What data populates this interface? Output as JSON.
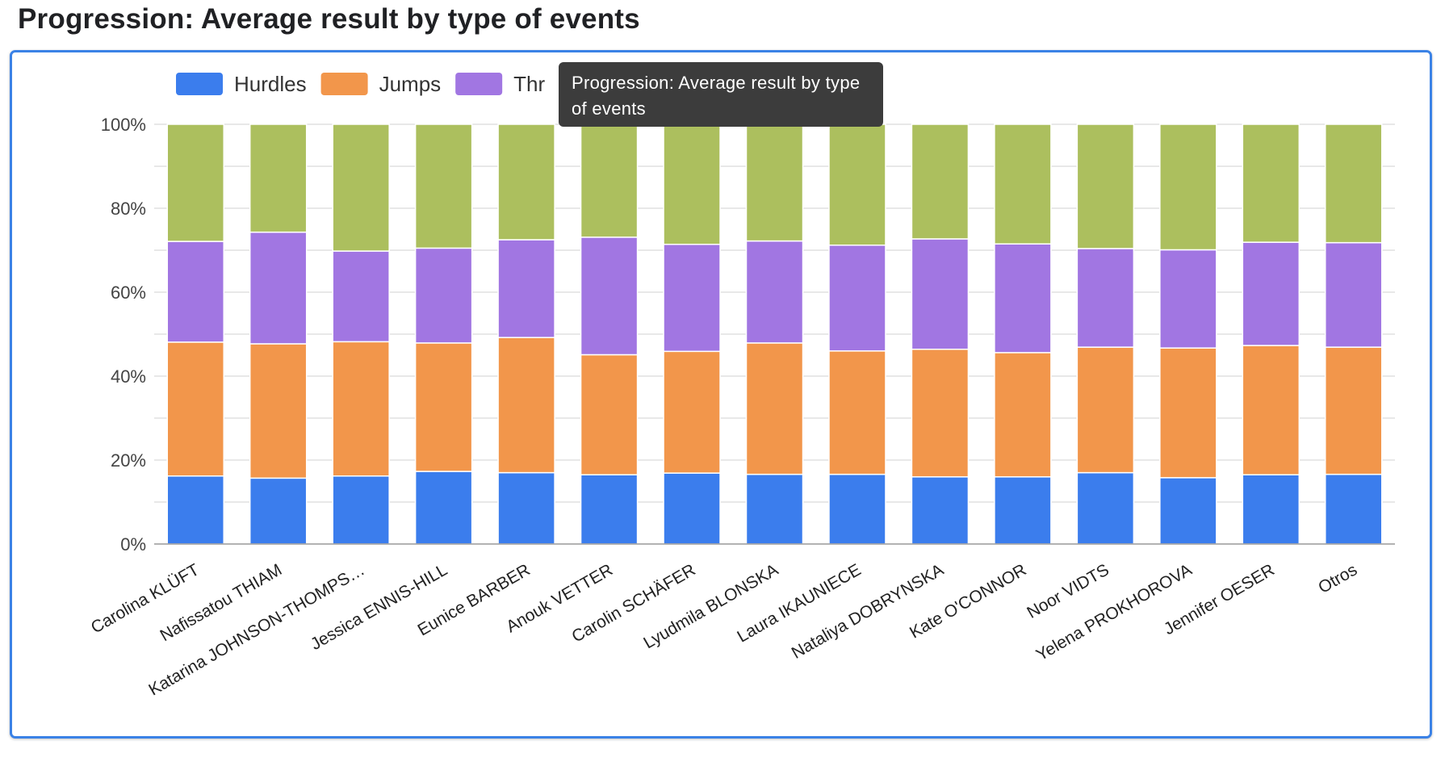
{
  "page": {
    "title": "Progression: Average result by type of events"
  },
  "tooltip": {
    "text": "Progression: Average result by type of events"
  },
  "colors": {
    "Hurdles": "#3b7ded",
    "Jumps": "#f2964b",
    "Throws": "#a176e2",
    "Runs": "#acbf5e",
    "grid": "#d9d9d9",
    "axis": "#999999",
    "tooltip_bg": "#3c3c3c",
    "card_border": "#3b82e6"
  },
  "chart_data": {
    "type": "bar",
    "stacked": "percent",
    "title": "Progression: Average result by type of events",
    "categories": [
      "Carolina KLÜFT",
      "Nafissatou THIAM",
      "Katarina JOHNSON-THOMPS…",
      "Jessica ENNIS-HILL",
      "Eunice BARBER",
      "Anouk VETTER",
      "Carolin SCHÄFER",
      "Lyudmila BLONSKA",
      "Laura IKAUNIECE",
      "Nataliya DOBRYNSKA",
      "Kate O'CONNOR",
      "Noor VIDTS",
      "Yelena PROKHOROVA",
      "Jennifer OESER",
      "Otros"
    ],
    "legend": {
      "position": "top-left",
      "visible_labels": [
        "Hurdles",
        "Jumps",
        "Thr"
      ]
    },
    "series": [
      {
        "name": "Hurdles",
        "color": "#3b7ded",
        "values": [
          16.2,
          15.7,
          16.2,
          17.3,
          17.0,
          16.5,
          16.9,
          16.6,
          16.6,
          16.0,
          16.0,
          17.0,
          15.8,
          16.5,
          16.6
        ]
      },
      {
        "name": "Jumps",
        "color": "#f2964b",
        "values": [
          31.9,
          32.0,
          32.0,
          30.6,
          32.2,
          28.6,
          29.0,
          31.3,
          29.4,
          30.4,
          29.6,
          29.9,
          30.9,
          30.8,
          30.3
        ]
      },
      {
        "name": "Thr",
        "color": "#a176e2",
        "values": [
          24.0,
          26.6,
          21.6,
          22.6,
          23.3,
          28.0,
          25.5,
          24.3,
          25.2,
          26.3,
          25.9,
          23.5,
          23.4,
          24.6,
          24.9
        ]
      },
      {
        "color": "#acbf5e",
        "values": [
          27.9,
          25.7,
          30.2,
          29.5,
          27.5,
          26.9,
          28.6,
          27.8,
          28.8,
          27.3,
          28.5,
          29.6,
          29.9,
          28.1,
          28.2
        ]
      }
    ],
    "yaxis": {
      "ticks": [
        "0%",
        "20%",
        "40%",
        "60%",
        "80%",
        "100%"
      ],
      "ylim": [
        0,
        100
      ],
      "minor_gridlines": true
    },
    "xaxis": {
      "label_rotation": -30
    },
    "grid": true
  }
}
